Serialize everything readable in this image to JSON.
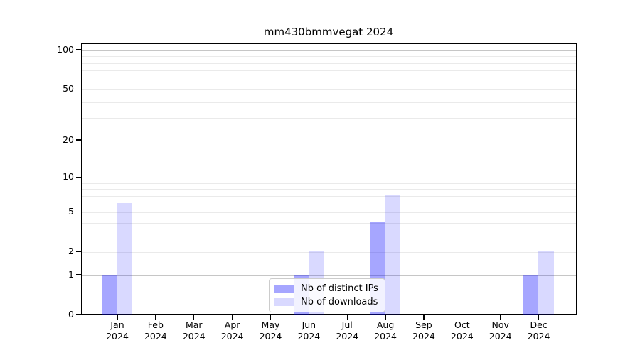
{
  "figure": {
    "title": "mm430bmmvegat 2024",
    "background": "#ffffff"
  },
  "legend": {
    "items": [
      {
        "label": "Nb of distinct IPs",
        "swatch": "rgba(0,0,255,0.35)"
      },
      {
        "label": "Nb of downloads",
        "swatch": "rgba(0,0,255,0.15)"
      }
    ]
  },
  "chart_data": {
    "type": "bar",
    "title": "mm430bmmvegat 2024",
    "categories": [
      "Jan",
      "Feb",
      "Mar",
      "Apr",
      "May",
      "Jun",
      "Jul",
      "Aug",
      "Sep",
      "Oct",
      "Nov",
      "Dec"
    ],
    "year_suffix": "2024",
    "series": [
      {
        "name": "Nb of distinct IPs",
        "color": "rgba(0,0,255,0.35)",
        "values": [
          1,
          0,
          0,
          0,
          0,
          1,
          0,
          4,
          0,
          0,
          0,
          1
        ]
      },
      {
        "name": "Nb of downloads",
        "color": "rgba(0,0,255,0.15)",
        "values": [
          6,
          0,
          0,
          0,
          0,
          2,
          0,
          7,
          0,
          0,
          0,
          2
        ]
      }
    ],
    "xlabel": "",
    "ylabel": "",
    "y_scale": "log1p",
    "ylim": [
      0,
      113
    ],
    "y_tick_values": [
      100,
      50,
      20,
      10,
      5,
      2,
      1,
      0
    ],
    "y_tick_labels": [
      "100",
      "50",
      "20",
      "10",
      "5",
      "2",
      "1",
      "0"
    ],
    "major_gridline_values": [
      1,
      10,
      100
    ],
    "minor_gridline_values": [
      2,
      3,
      4,
      5,
      6,
      7,
      8,
      9,
      20,
      30,
      40,
      50,
      60,
      70,
      80,
      90
    ],
    "grid": true,
    "legend_position": "lower center"
  }
}
